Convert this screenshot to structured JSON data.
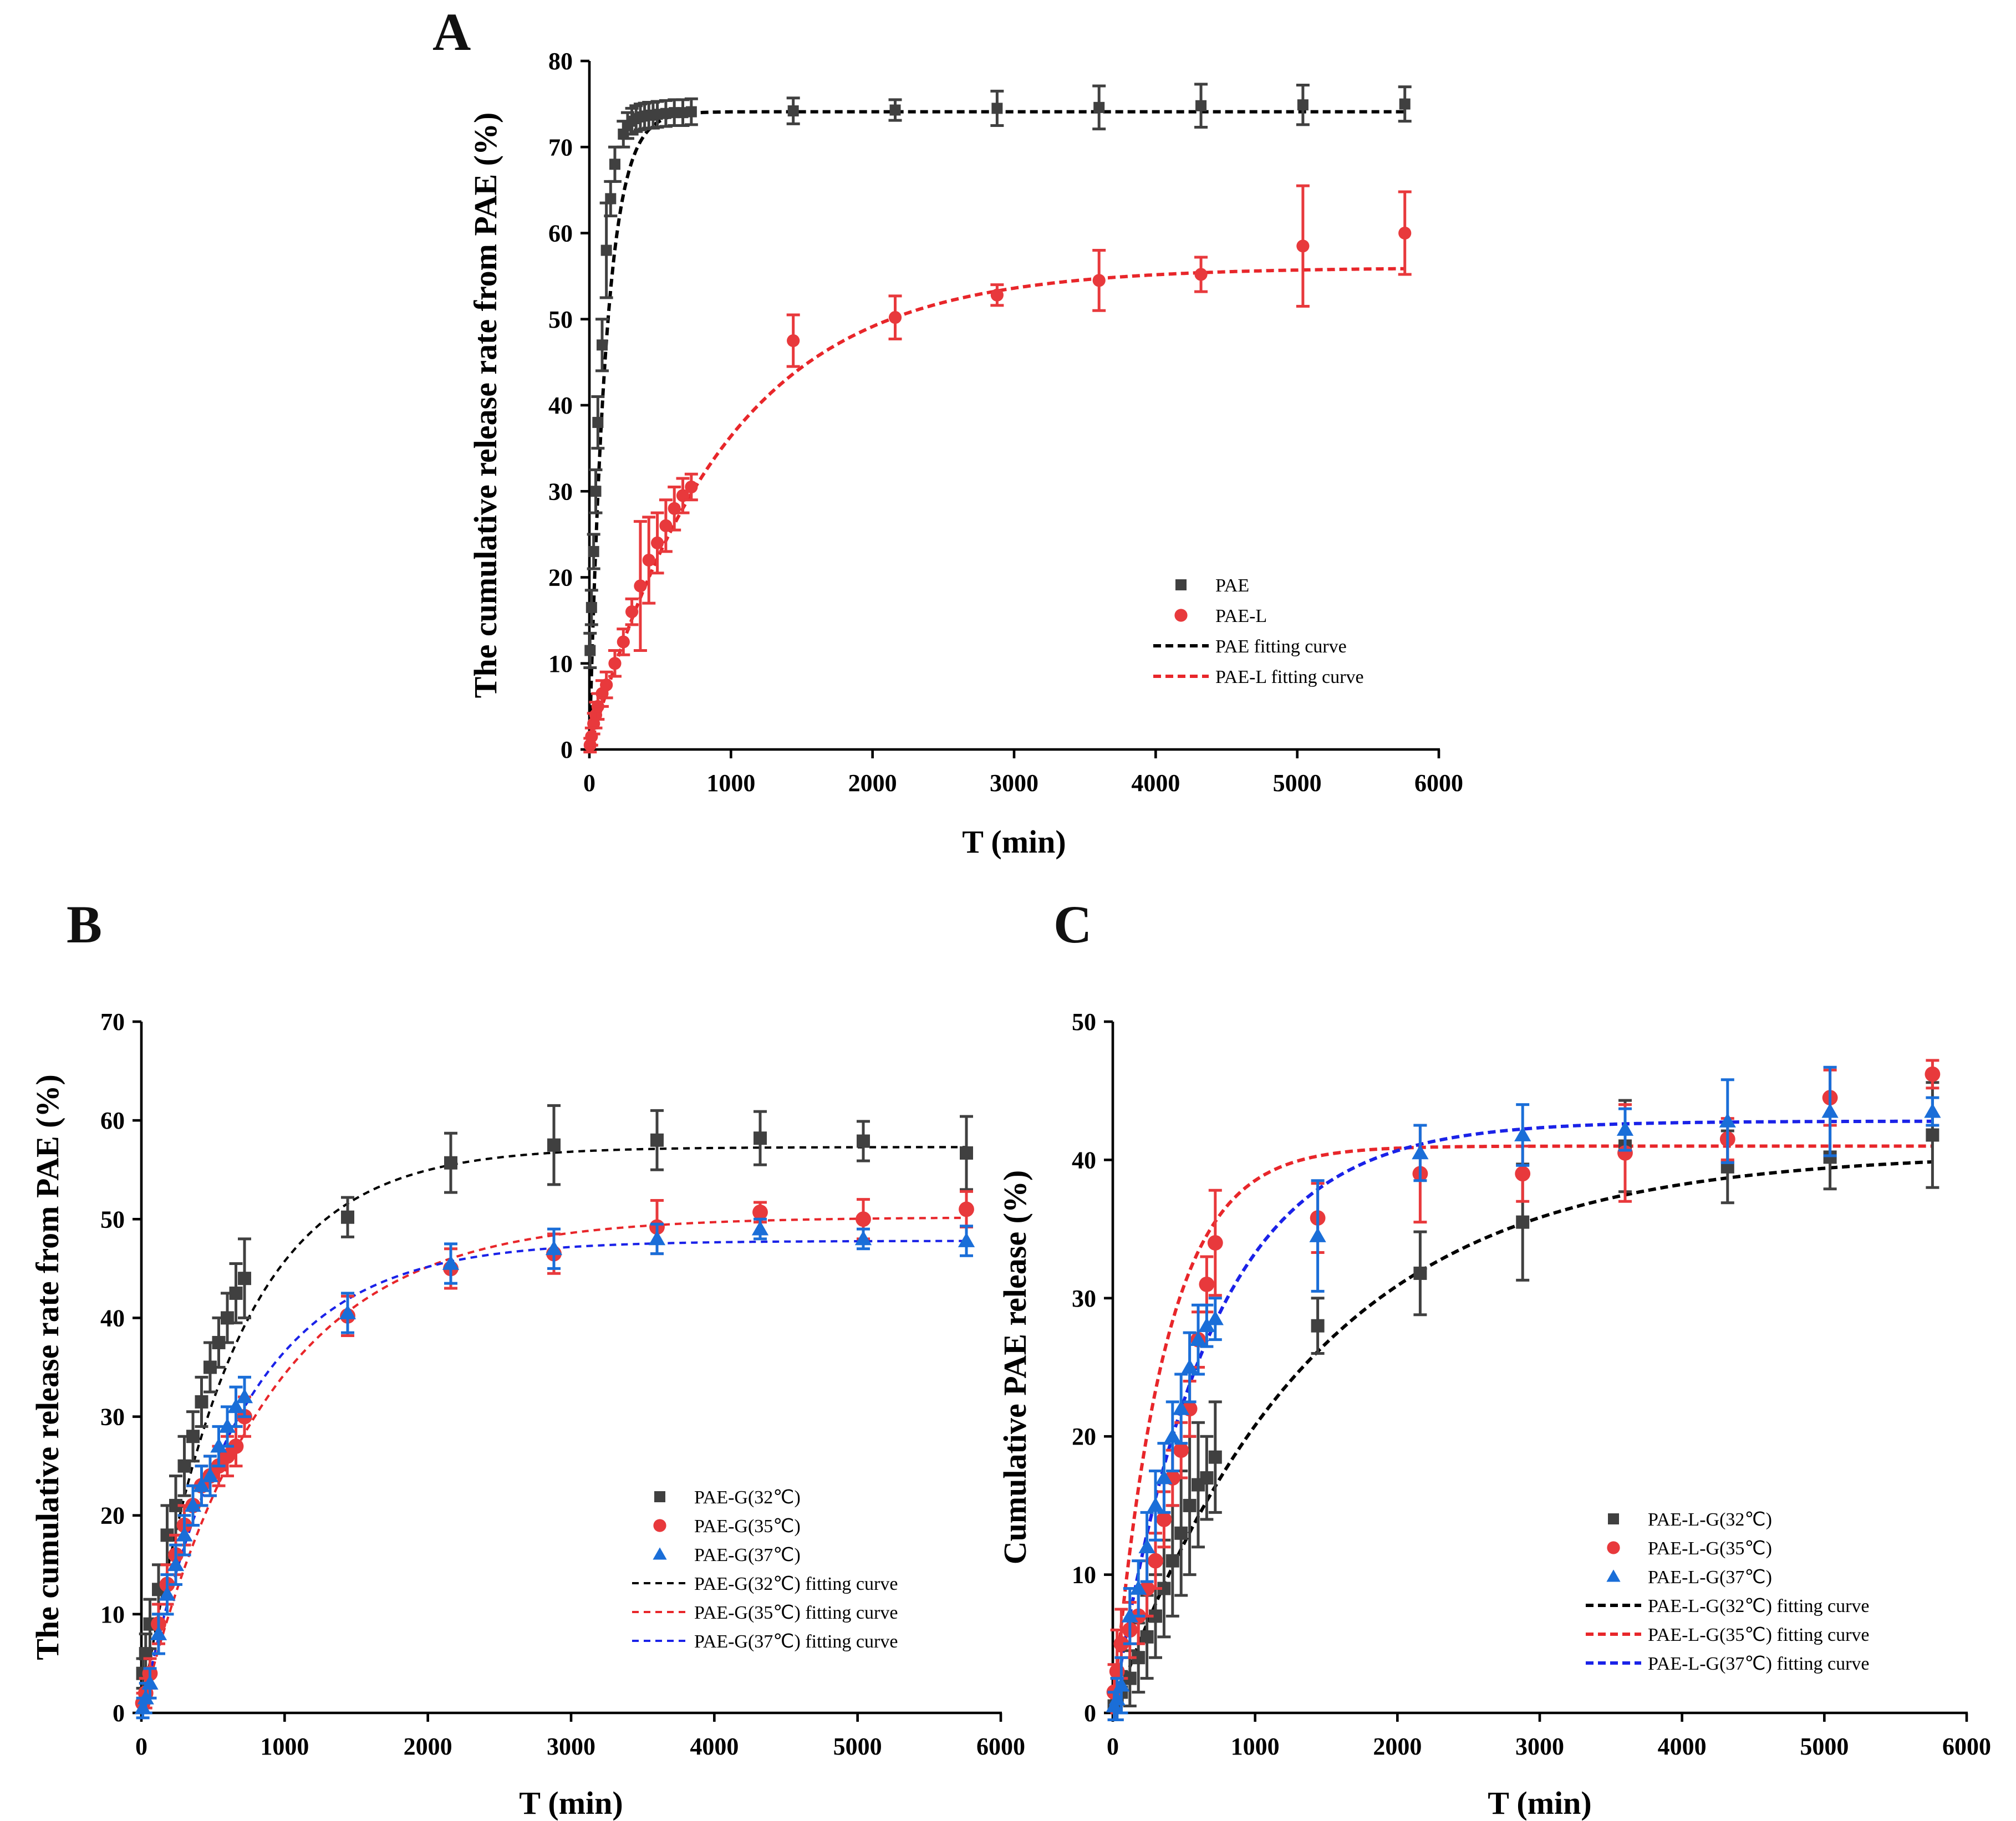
{
  "chart_data": [
    {
      "id": "A",
      "type": "scatter",
      "panel_label": "A",
      "title": "",
      "xlabel": "T (min)",
      "ylabel": "The cumulative release rate from PAE (%)",
      "xlim": [
        0,
        6000
      ],
      "ylim": [
        0,
        80
      ],
      "xticks": [
        0,
        1000,
        2000,
        3000,
        4000,
        5000,
        6000
      ],
      "yticks": [
        0,
        10,
        20,
        30,
        40,
        50,
        60,
        70,
        80
      ],
      "legend_position": "lower-right",
      "series": [
        {
          "name": "PAE",
          "marker": "square",
          "color": "#404040",
          "x": [
            5,
            15,
            30,
            45,
            60,
            90,
            120,
            150,
            180,
            240,
            270,
            300,
            330,
            360,
            390,
            420,
            450,
            480,
            540,
            600,
            660,
            720,
            1440,
            2160,
            2880,
            3600,
            4320,
            5040,
            5760
          ],
          "y": [
            11.5,
            16.5,
            23,
            30,
            38,
            47,
            58,
            64,
            68,
            71.5,
            72.5,
            73,
            73.3,
            73.5,
            73.6,
            73.7,
            73.7,
            73.8,
            73.9,
            74,
            74,
            74.1,
            74.2,
            74.3,
            74.5,
            74.6,
            74.8,
            74.9,
            75
          ],
          "err": [
            2,
            2,
            2,
            2.5,
            3,
            3,
            5.5,
            2,
            2,
            1.5,
            1.5,
            1.5,
            1.5,
            1.5,
            1.5,
            1.5,
            1.5,
            1.5,
            1.5,
            1.5,
            1.5,
            1.5,
            1.5,
            1.2,
            2,
            2.5,
            2.5,
            2.3,
            2
          ]
        },
        {
          "name": "PAE-L",
          "marker": "circle",
          "color": "#e8393c",
          "x": [
            5,
            15,
            30,
            45,
            60,
            90,
            120,
            180,
            240,
            300,
            360,
            420,
            480,
            540,
            600,
            660,
            720,
            1440,
            2160,
            2880,
            3600,
            4320,
            5040,
            5760
          ],
          "y": [
            0.5,
            1.5,
            3,
            4,
            5,
            6.5,
            7.5,
            10,
            12.5,
            16,
            19,
            22,
            24,
            26,
            28,
            29.5,
            30.5,
            47.5,
            50.2,
            52.8,
            54.5,
            55.2,
            58.5,
            60
          ],
          "err": [
            0.8,
            1,
            1.2,
            1.5,
            1.5,
            1.5,
            1.5,
            1.5,
            1.5,
            1.5,
            7.5,
            5,
            3.5,
            3,
            2.5,
            2,
            1.5,
            3,
            2.5,
            1.2,
            3.5,
            2,
            7,
            4.8
          ]
        },
        {
          "name": "PAE fitting curve",
          "type": "fit",
          "color": "#000000",
          "model": "plateau*(1-exp(-k*t))",
          "plateau": 74.1,
          "k": 0.0085
        },
        {
          "name": "PAE-L fitting curve",
          "type": "fit",
          "color": "#e8262a",
          "model": "plateau*(1-exp(-k*t))",
          "plateau": 56,
          "k": 0.00105
        }
      ]
    },
    {
      "id": "B",
      "type": "scatter",
      "panel_label": "B",
      "title": "",
      "xlabel": "T (min)",
      "ylabel": "The cumulative release rate from PAE (%)",
      "xlim": [
        0,
        6000
      ],
      "ylim": [
        0,
        70
      ],
      "xticks": [
        0,
        1000,
        2000,
        3000,
        4000,
        5000,
        6000
      ],
      "yticks": [
        0,
        10,
        20,
        30,
        40,
        50,
        60,
        70
      ],
      "legend_position": "lower-right",
      "series": [
        {
          "name": "PAE-G(32℃)",
          "marker": "square",
          "color": "#404040",
          "x": [
            10,
            30,
            60,
            120,
            180,
            240,
            300,
            360,
            420,
            480,
            540,
            600,
            660,
            720,
            1440,
            2160,
            2880,
            3600,
            4320,
            5040,
            5760
          ],
          "y": [
            4,
            6,
            9,
            12.5,
            18,
            21,
            25,
            28,
            31.5,
            35,
            37.5,
            40,
            42.5,
            44,
            50.2,
            55.7,
            57.5,
            58,
            58.2,
            57.9,
            56.7
          ],
          "err": [
            1.5,
            2,
            2.5,
            2.5,
            3,
            3,
            3,
            2.5,
            2.5,
            2.5,
            2.5,
            2.5,
            3,
            4,
            2,
            3,
            4,
            3,
            2.7,
            2,
            3.7
          ]
        },
        {
          "name": "PAE-G(35℃)",
          "marker": "circle",
          "color": "#e8393c",
          "x": [
            10,
            30,
            60,
            120,
            180,
            240,
            300,
            360,
            420,
            480,
            540,
            600,
            660,
            720,
            1440,
            2160,
            2880,
            3600,
            4320,
            5040,
            5760
          ],
          "y": [
            1,
            2,
            4,
            9,
            13,
            16,
            19,
            21,
            23,
            24,
            25,
            26,
            27,
            30,
            40.2,
            45,
            46.5,
            49.2,
            50.7,
            50,
            51
          ],
          "err": [
            1,
            1.5,
            1.5,
            2,
            2,
            2,
            2,
            2,
            2,
            2,
            2,
            2,
            2,
            2,
            2,
            2,
            2,
            2.7,
            1,
            2,
            1.8
          ]
        },
        {
          "name": "PAE-G(37℃)",
          "marker": "triangle",
          "color": "#1a6ed8",
          "x": [
            10,
            30,
            60,
            120,
            180,
            240,
            300,
            360,
            420,
            480,
            540,
            600,
            660,
            720,
            1440,
            2160,
            2880,
            3600,
            4320,
            5040,
            5760
          ],
          "y": [
            0.5,
            1.5,
            3,
            8,
            12,
            15,
            18,
            21,
            23,
            24,
            27,
            29,
            31,
            32,
            40.5,
            45.5,
            47,
            48,
            49,
            48,
            47.8
          ],
          "err": [
            1,
            1.5,
            1.5,
            2,
            2,
            2,
            2,
            2,
            2,
            2,
            2,
            2,
            2,
            2,
            2,
            2,
            2,
            1.5,
            1,
            1,
            1.5
          ]
        },
        {
          "name": "PAE-G(32℃) fitting curve",
          "type": "fit",
          "color": "#000000",
          "model": "plateau*(1-exp(-k*t))",
          "plateau": 57.3,
          "k": 0.0016
        },
        {
          "name": "PAE-G(35℃) fitting curve",
          "type": "fit",
          "color": "#e8262a",
          "model": "plateau*(1-exp(-k*t))",
          "plateau": 50.2,
          "k": 0.00115
        },
        {
          "name": "PAE-G(37℃) fitting curve",
          "type": "fit",
          "color": "#1a22e8",
          "model": "plateau*(1-exp(-k*t))",
          "plateau": 47.8,
          "k": 0.00145
        }
      ]
    },
    {
      "id": "C",
      "type": "scatter",
      "panel_label": "C",
      "title": "",
      "xlabel": "T (min)",
      "ylabel": "Cumulative PAE release (%)",
      "xlim": [
        0,
        6000
      ],
      "ylim": [
        0,
        50
      ],
      "xticks": [
        0,
        1000,
        2000,
        3000,
        4000,
        5000,
        6000
      ],
      "yticks": [
        0,
        10,
        20,
        30,
        40,
        50
      ],
      "legend_position": "lower-right",
      "series": [
        {
          "name": "PAE-L-G(32℃)",
          "marker": "square",
          "color": "#404040",
          "x": [
            10,
            30,
            60,
            120,
            180,
            240,
            300,
            360,
            420,
            480,
            540,
            600,
            660,
            720,
            1440,
            2160,
            2880,
            3600,
            4320,
            5040,
            5760
          ],
          "y": [
            0.5,
            1,
            1.5,
            2.5,
            4,
            5.5,
            7,
            9,
            11,
            13,
            15,
            16.5,
            17,
            18.5,
            28,
            31.8,
            35.5,
            41,
            39.5,
            40.2,
            41.8
          ],
          "err": [
            1,
            1.5,
            1.5,
            2,
            2.5,
            3,
            3,
            3.5,
            4,
            4.5,
            5,
            4.5,
            3,
            4,
            2,
            3,
            4.2,
            3.3,
            2.6,
            2.3,
            3.8
          ]
        },
        {
          "name": "PAE-L-G(35℃)",
          "marker": "circle",
          "color": "#e8393c",
          "x": [
            10,
            30,
            60,
            120,
            180,
            240,
            300,
            360,
            420,
            480,
            540,
            600,
            660,
            720,
            1440,
            2160,
            2880,
            3600,
            4320,
            5040,
            5760
          ],
          "y": [
            1.5,
            3,
            5,
            6,
            7,
            9,
            11,
            14,
            17,
            19,
            22,
            27,
            31,
            34,
            35.8,
            39,
            39,
            40.5,
            41.5,
            44.5,
            46.2
          ],
          "err": [
            2,
            3,
            2.5,
            2,
            2,
            2,
            2,
            2,
            2,
            2,
            2,
            2,
            2,
            3.8,
            2.5,
            3.5,
            2,
            3.5,
            1.5,
            2,
            1
          ]
        },
        {
          "name": "PAE-L-G(37℃)",
          "marker": "triangle",
          "color": "#1a6ed8",
          "x": [
            10,
            30,
            60,
            120,
            180,
            240,
            300,
            360,
            420,
            480,
            540,
            600,
            660,
            720,
            1440,
            2160,
            2880,
            3600,
            4320,
            5040,
            5760
          ],
          "y": [
            0.5,
            1,
            2,
            7,
            9,
            12,
            15,
            17,
            20,
            22,
            25,
            27,
            28,
            28.5,
            34.5,
            40.5,
            41.8,
            42.2,
            42.8,
            43.5,
            43.5
          ],
          "err": [
            1,
            1.5,
            2,
            2,
            2,
            2.5,
            2.5,
            2.5,
            2.5,
            2.5,
            2.5,
            2.5,
            1.5,
            1.5,
            4,
            2,
            2.2,
            1.5,
            3,
            3.2,
            1
          ]
        },
        {
          "name": "PAE-L-G(32℃) fitting curve",
          "type": "fit",
          "color": "#000000",
          "model": "plateau*(1-exp(-k*t))",
          "plateau": 40.5,
          "k": 0.00072
        },
        {
          "name": "PAE-L-G(35℃) fitting curve",
          "type": "fit",
          "color": "#e8262a",
          "model": "plateau*(1-exp(-k*t))",
          "plateau": 41,
          "k": 0.0028
        },
        {
          "name": "PAE-L-G(37℃) fitting curve",
          "type": "fit",
          "color": "#1a22e8",
          "model": "plateau*(1-exp(-k*t))",
          "plateau": 42.8,
          "k": 0.0015
        }
      ]
    }
  ]
}
